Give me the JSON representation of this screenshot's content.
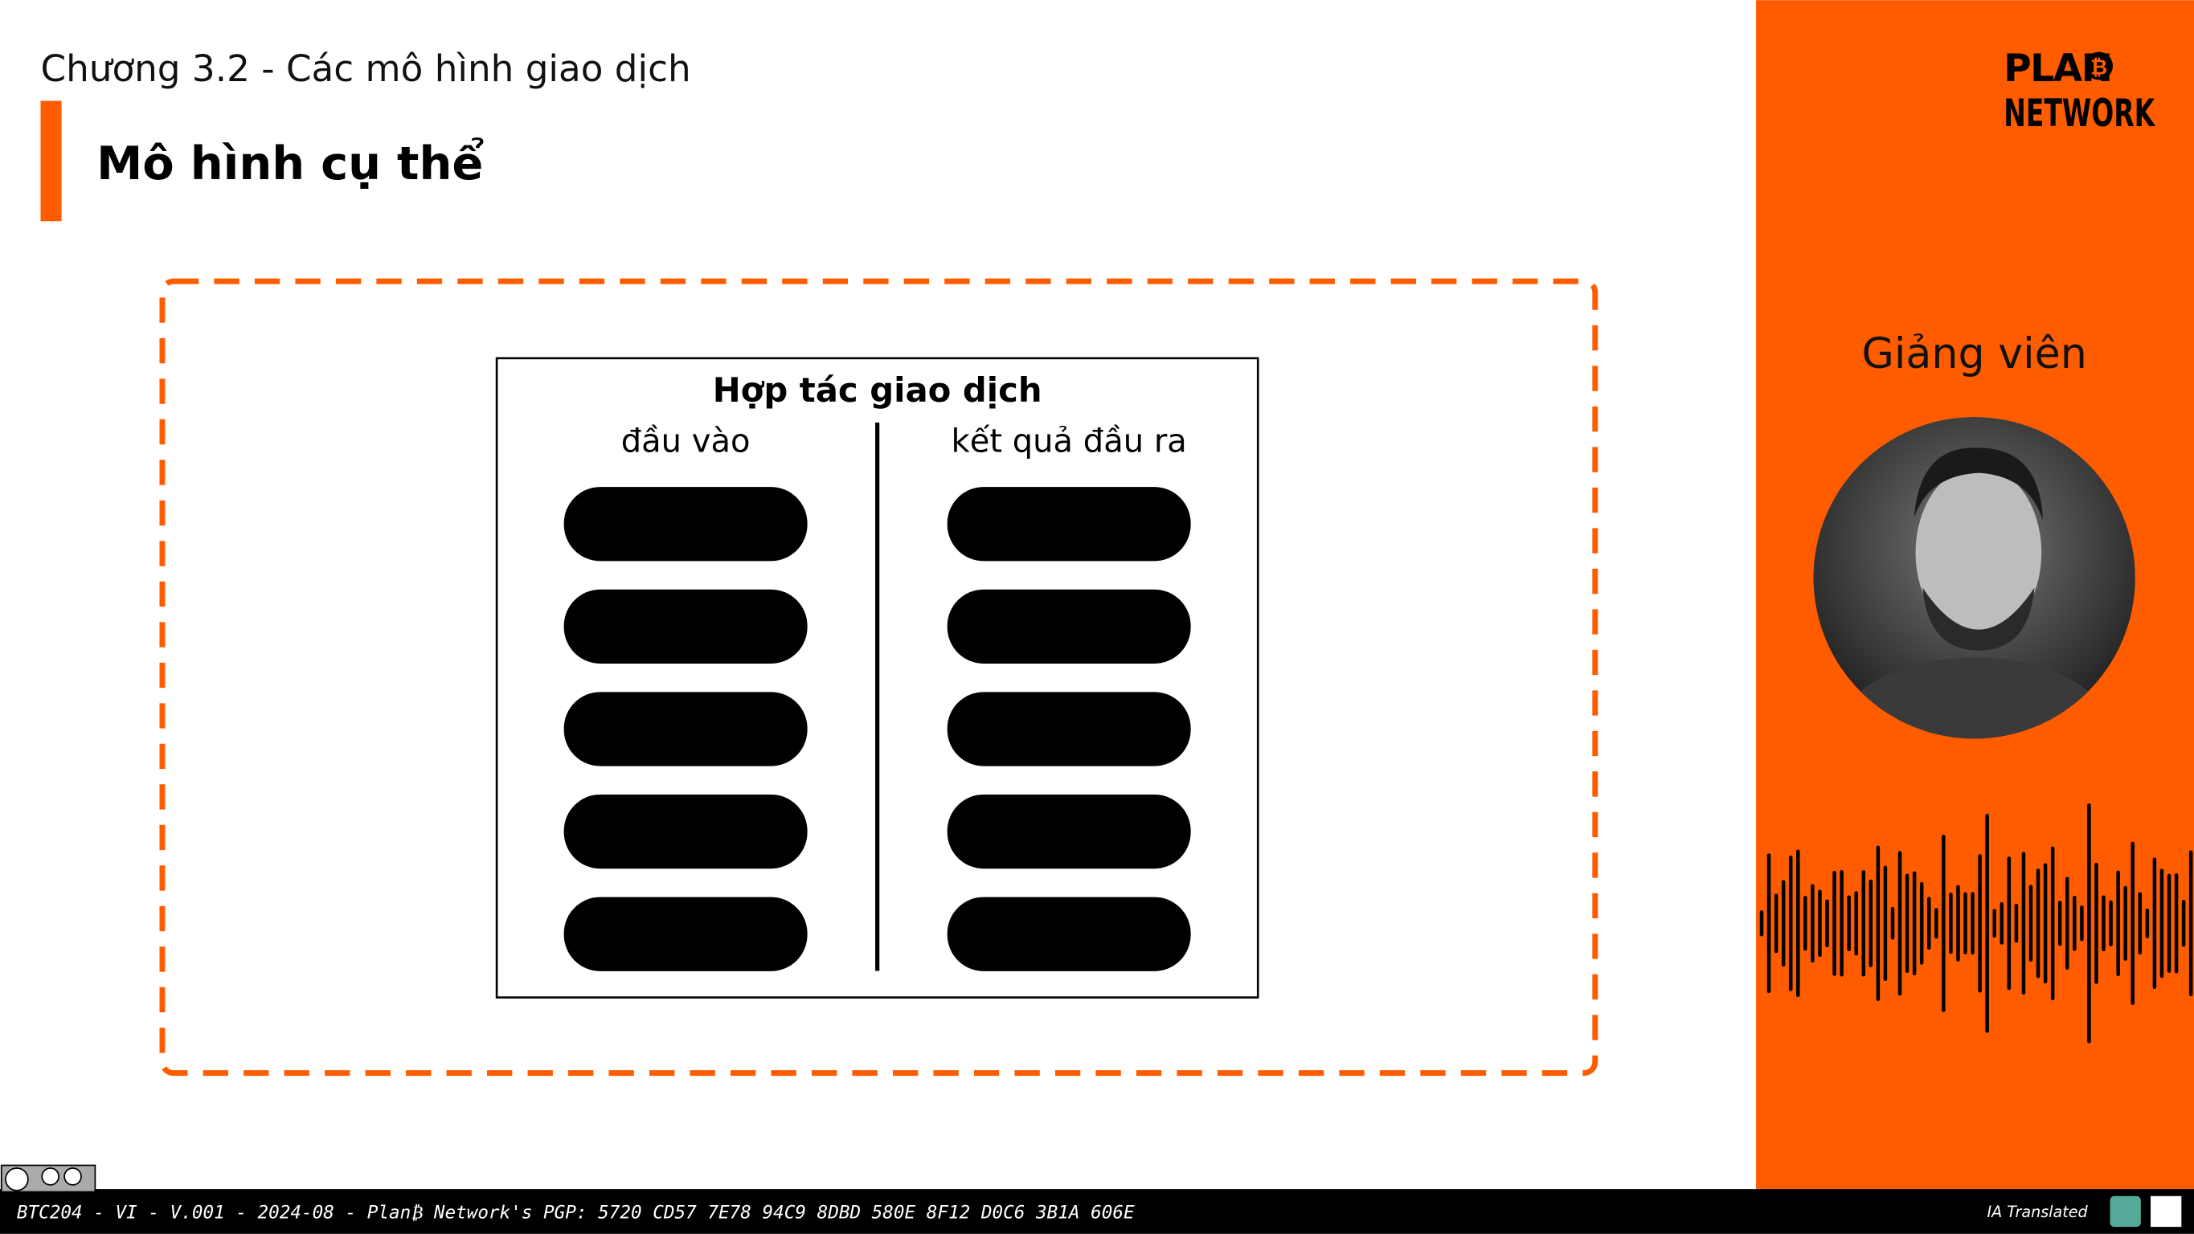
{
  "header": {
    "chapter": "Chương 3.2 - Các mô hình giao dịch",
    "title": "Mô hình cụ thể"
  },
  "diagram": {
    "title": "Hợp tác giao dịch",
    "left_label": "đầu vào",
    "right_label": "kết quả đầu ra"
  },
  "sidebar": {
    "logo_top": "PLAN",
    "logo_badge": "₿",
    "logo_bottom": "NETWORK",
    "speaker_label": "Giảng viên"
  },
  "footer": {
    "text": "BTC204 - VI - V.001 - 2024-08 - Plan₿ Network's PGP: 5720 CD57 7E78 94C9 8DBD 580E 8F12 D0C6 3B1A 606E",
    "translated": "IA Translated"
  }
}
